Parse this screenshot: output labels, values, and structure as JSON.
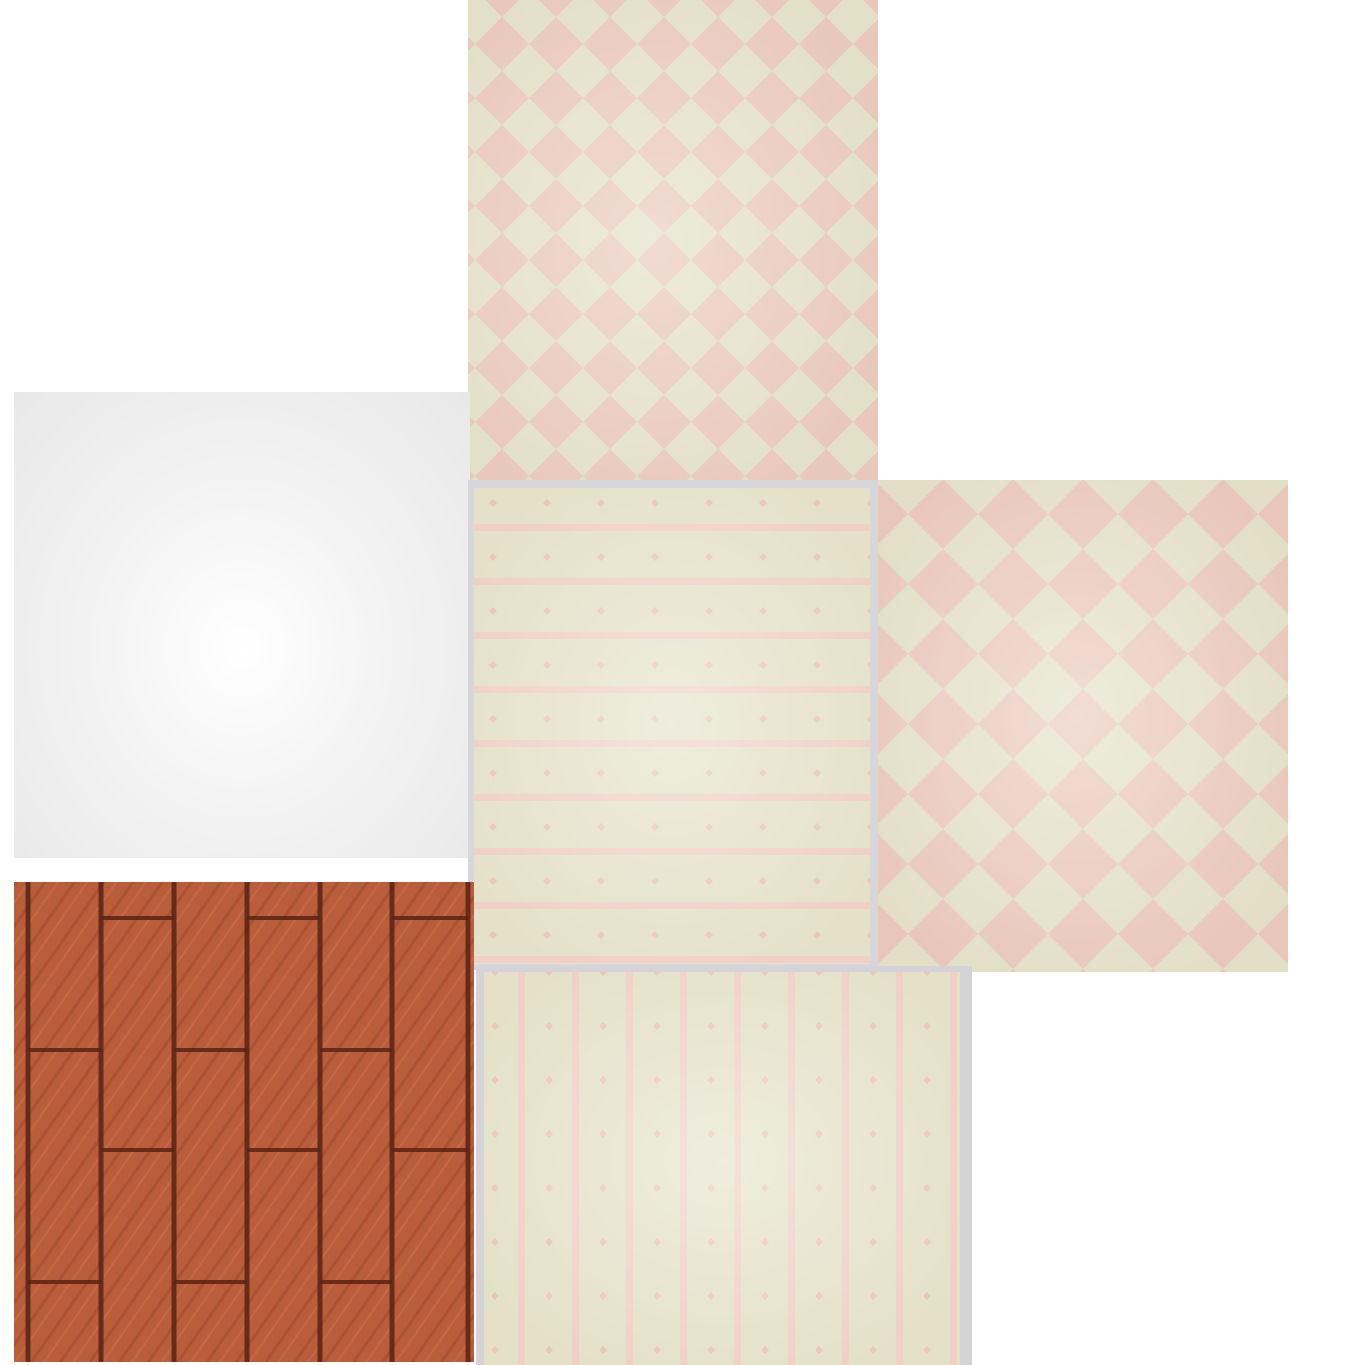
{
  "scene": {
    "panels": [
      {
        "name": "top-diamond-wallpaper",
        "pattern": "diamond-checker"
      },
      {
        "name": "left-plain-wall",
        "pattern": "plain"
      },
      {
        "name": "center-striped-wallpaper",
        "pattern": "horizontal-stripes-dots"
      },
      {
        "name": "right-diamond-wallpaper",
        "pattern": "diamond-checker"
      },
      {
        "name": "wood-plank-floor",
        "pattern": "wood-planks"
      },
      {
        "name": "bottom-striped-wallpaper",
        "pattern": "vertical-stripes-dots"
      }
    ]
  },
  "colors": {
    "cream": "#e6e3c8",
    "cream_light": "#f2f2dc",
    "pink": "#eec8bc",
    "pink_stripe": "#f2c8c0",
    "gray_light": "#f3f3f3",
    "wood": "#c2613f",
    "wood_dark": "#6d2f1c",
    "frame_gray": "#d7d6da"
  }
}
